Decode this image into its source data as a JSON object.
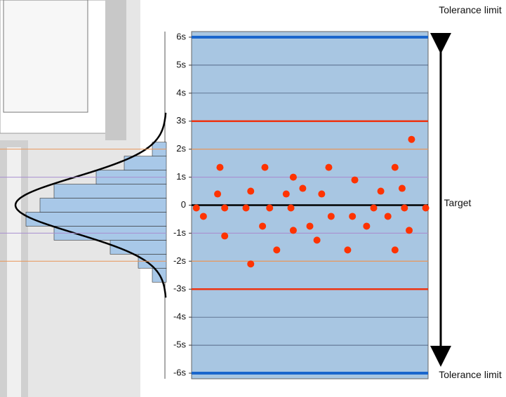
{
  "chart_data": {
    "type": "scatter",
    "x": [
      2,
      5,
      11,
      12,
      14,
      14,
      23,
      25,
      25,
      30,
      31,
      33,
      36,
      40,
      42,
      43,
      43,
      47,
      50,
      53,
      55,
      58,
      59,
      66,
      68,
      69,
      74,
      77,
      80,
      83,
      86,
      86,
      89,
      90,
      92,
      93,
      99
    ],
    "values": [
      -0.1,
      -0.4,
      0.4,
      1.35,
      -0.1,
      -1.1,
      -0.1,
      0.5,
      -2.1,
      -0.75,
      1.35,
      -0.1,
      -1.6,
      0.4,
      -0.1,
      1.0,
      -0.9,
      0.6,
      -0.75,
      -1.25,
      0.4,
      1.35,
      -0.4,
      -1.6,
      -0.4,
      0.9,
      -0.75,
      -0.1,
      0.5,
      -0.4,
      1.35,
      -1.6,
      0.6,
      -0.1,
      -0.9,
      2.35,
      -0.1
    ],
    "color": "#ff3300",
    "xlim": [
      0,
      100
    ],
    "ylim": [
      -6.2,
      6.2
    ],
    "yticks": [
      {
        "value": 6,
        "label": "6s"
      },
      {
        "value": 5,
        "label": "5s"
      },
      {
        "value": 4,
        "label": "4s"
      },
      {
        "value": 3,
        "label": "3s"
      },
      {
        "value": 2,
        "label": "2s"
      },
      {
        "value": 1,
        "label": "1s"
      },
      0,
      {
        "value": -1,
        "label": "-1s"
      },
      {
        "value": -2,
        "label": "-2s"
      },
      {
        "value": -3,
        "label": "-3s"
      },
      {
        "value": -4,
        "label": "-4s"
      },
      {
        "value": -5,
        "label": "-5s"
      },
      {
        "value": -6,
        "label": "-6s"
      }
    ],
    "grid": true,
    "limit_lines": [
      {
        "value": 6,
        "color": "#1a66cc"
      },
      {
        "value": -6,
        "color": "#1a66cc"
      },
      {
        "value": 3,
        "color": "#ee3311"
      },
      {
        "value": -3,
        "color": "#ee3311"
      },
      {
        "value": 2,
        "color": "#e8965a"
      },
      {
        "value": -2,
        "color": "#e8965a"
      },
      {
        "value": 1,
        "color": "#a98fd0"
      },
      {
        "value": -1,
        "color": "#a98fd0"
      },
      {
        "value": 0,
        "color": "#000000"
      }
    ],
    "histogram": {
      "bins": [
        -2.75,
        -2.25,
        -1.75,
        -1.25,
        -0.75,
        -0.25,
        0.25,
        0.75,
        1.25,
        1.75,
        2.25
      ],
      "counts": [
        1,
        2,
        4,
        8,
        10,
        9,
        8,
        5,
        3,
        1
      ],
      "color": "#a8c8e8"
    },
    "annotations": {
      "top": "Tolerance limit",
      "middle": "Target",
      "bottom": "Tolerance limit"
    }
  }
}
